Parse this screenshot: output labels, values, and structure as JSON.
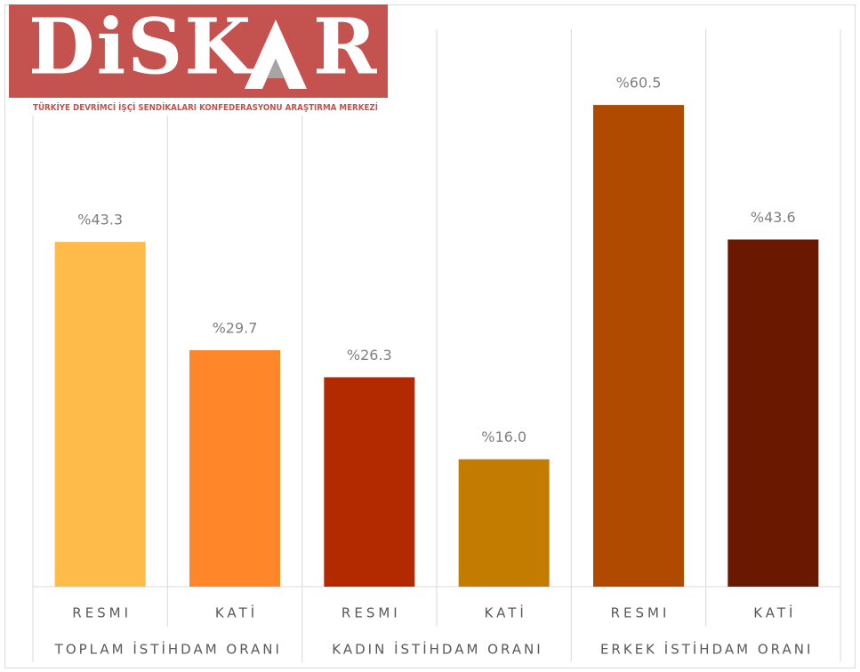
{
  "logo": {
    "text_left": "DiSK",
    "text_right": "R",
    "subtitle": "TÜRKİYE DEVRİMCİ İŞÇİ SENDİKALARI KONFEDERASYONU ARAŞTIRMA MERKEZİ"
  },
  "chart_data": {
    "type": "bar",
    "categories": [
      "RESMI",
      "KATİ",
      "RESMI",
      "KATİ",
      "RESMI",
      "KATİ"
    ],
    "groups": [
      "TOPLAM İSTİHDAM ORANI",
      "KADIN İSTİHDAM ORANI",
      "ERKEK İSTİHDAM ORANI"
    ],
    "values": [
      43.3,
      29.7,
      26.3,
      16.0,
      60.5,
      43.6
    ],
    "value_labels": [
      "%43.3",
      "%29.7",
      "%26.3",
      "%16.0",
      "%60.5",
      "%43.6"
    ],
    "colors": [
      "#ffbb49",
      "#ff8629",
      "#b32900",
      "#c47c00",
      "#b04a00",
      "#6b1800"
    ],
    "ylim": [
      0,
      70
    ]
  }
}
